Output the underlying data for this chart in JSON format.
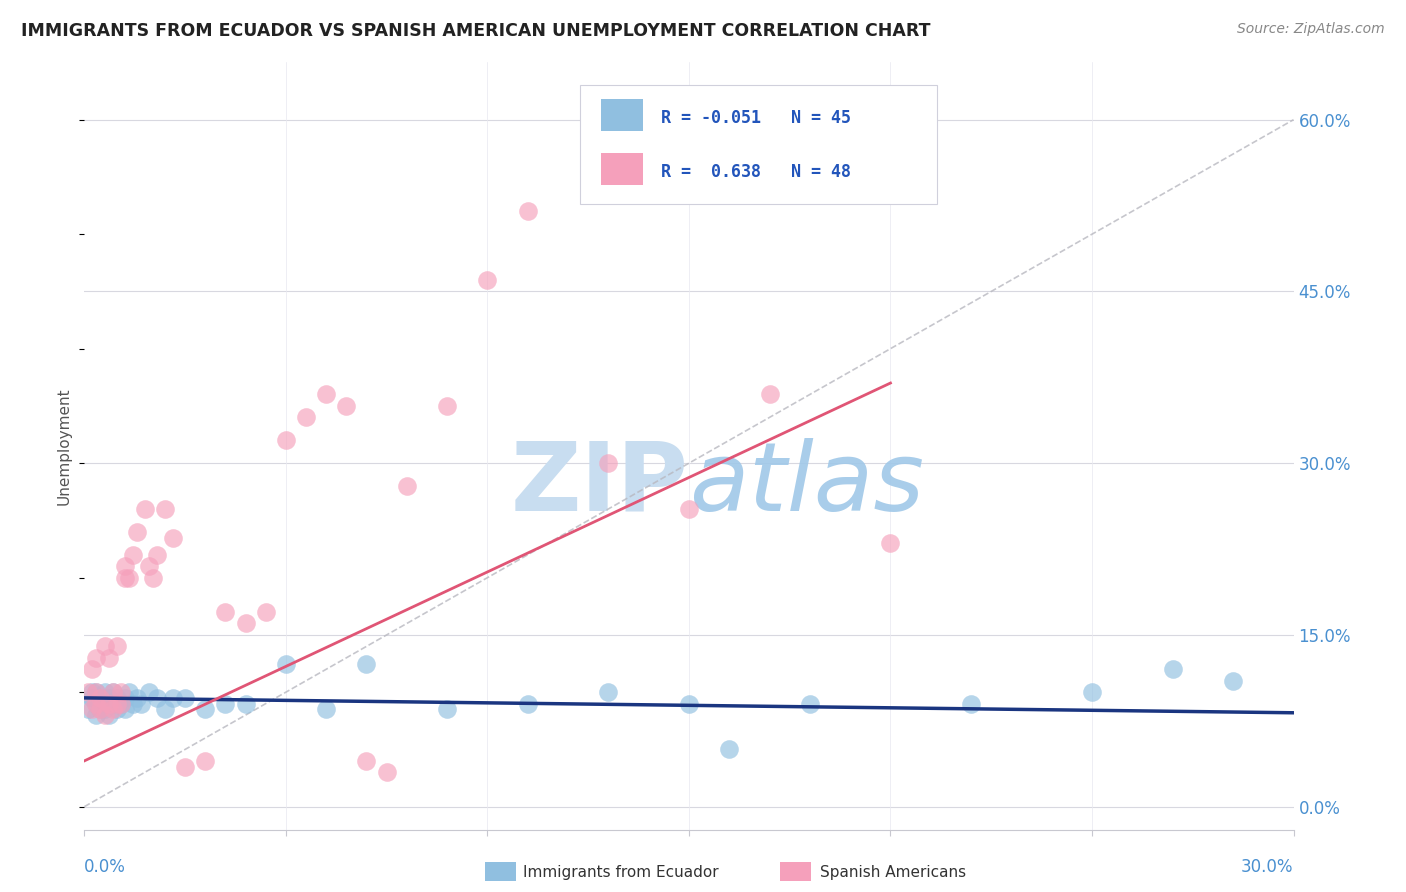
{
  "title": "IMMIGRANTS FROM ECUADOR VS SPANISH AMERICAN UNEMPLOYMENT CORRELATION CHART",
  "source": "Source: ZipAtlas.com",
  "ylabel": "Unemployment",
  "ytick_values": [
    0.0,
    0.15,
    0.3,
    0.45,
    0.6
  ],
  "xlim": [
    0.0,
    0.3
  ],
  "ylim": [
    -0.02,
    0.65
  ],
  "ecuador_color": "#90bfe0",
  "spanish_color": "#f5a0bb",
  "ecuador_line_color": "#1a3580",
  "spanish_line_color": "#e05575",
  "watermark_color_zip": "#c8ddf0",
  "watermark_color_atlas": "#a0c8e8",
  "ecuador_x": [
    0.001,
    0.002,
    0.002,
    0.003,
    0.003,
    0.003,
    0.004,
    0.004,
    0.005,
    0.005,
    0.005,
    0.006,
    0.006,
    0.007,
    0.007,
    0.008,
    0.008,
    0.009,
    0.01,
    0.01,
    0.011,
    0.012,
    0.013,
    0.014,
    0.016,
    0.018,
    0.02,
    0.022,
    0.025,
    0.03,
    0.035,
    0.04,
    0.05,
    0.06,
    0.07,
    0.09,
    0.11,
    0.13,
    0.15,
    0.16,
    0.18,
    0.22,
    0.25,
    0.27,
    0.285
  ],
  "ecuador_y": [
    0.085,
    0.095,
    0.1,
    0.08,
    0.09,
    0.1,
    0.085,
    0.095,
    0.085,
    0.09,
    0.1,
    0.08,
    0.095,
    0.09,
    0.1,
    0.085,
    0.095,
    0.09,
    0.085,
    0.095,
    0.1,
    0.09,
    0.095,
    0.09,
    0.1,
    0.095,
    0.085,
    0.095,
    0.095,
    0.085,
    0.09,
    0.09,
    0.125,
    0.085,
    0.125,
    0.085,
    0.09,
    0.1,
    0.09,
    0.05,
    0.09,
    0.09,
    0.1,
    0.12,
    0.11
  ],
  "spanish_x": [
    0.001,
    0.002,
    0.002,
    0.003,
    0.003,
    0.003,
    0.004,
    0.004,
    0.005,
    0.005,
    0.006,
    0.006,
    0.007,
    0.007,
    0.008,
    0.008,
    0.009,
    0.009,
    0.01,
    0.01,
    0.011,
    0.012,
    0.013,
    0.015,
    0.016,
    0.017,
    0.018,
    0.02,
    0.022,
    0.025,
    0.03,
    0.035,
    0.04,
    0.045,
    0.05,
    0.055,
    0.06,
    0.065,
    0.07,
    0.075,
    0.08,
    0.09,
    0.1,
    0.11,
    0.13,
    0.15,
    0.17,
    0.2
  ],
  "spanish_y": [
    0.1,
    0.085,
    0.12,
    0.09,
    0.1,
    0.13,
    0.085,
    0.095,
    0.08,
    0.14,
    0.09,
    0.13,
    0.085,
    0.1,
    0.09,
    0.14,
    0.1,
    0.09,
    0.2,
    0.21,
    0.2,
    0.22,
    0.24,
    0.26,
    0.21,
    0.2,
    0.22,
    0.26,
    0.235,
    0.035,
    0.04,
    0.17,
    0.16,
    0.17,
    0.32,
    0.34,
    0.36,
    0.35,
    0.04,
    0.03,
    0.28,
    0.35,
    0.46,
    0.52,
    0.3,
    0.26,
    0.36,
    0.23
  ],
  "ecuador_line_x": [
    0.0,
    0.3
  ],
  "ecuador_line_y": [
    0.095,
    0.082
  ],
  "spanish_line_x": [
    0.0,
    0.2
  ],
  "spanish_line_y": [
    0.04,
    0.37
  ],
  "diag_line_x": [
    0.0,
    0.3
  ],
  "diag_line_y": [
    0.0,
    0.6
  ]
}
